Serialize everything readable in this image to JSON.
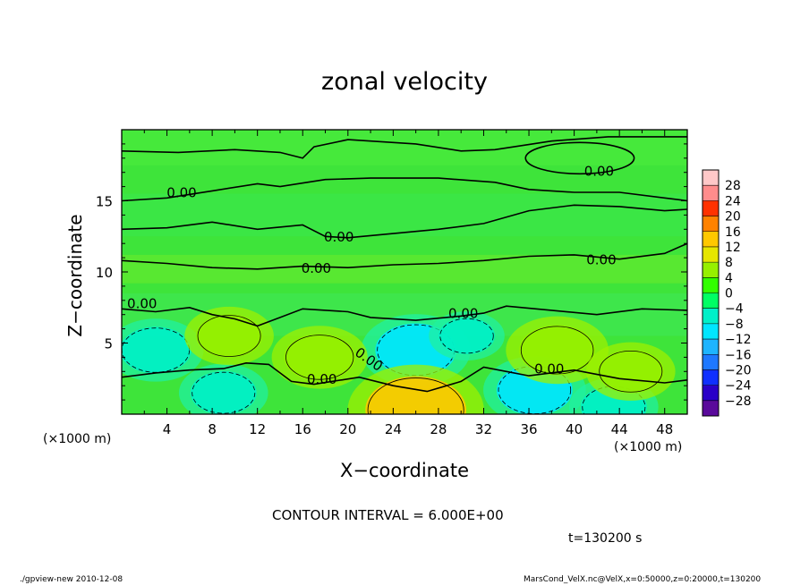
{
  "chart_data": {
    "type": "heatmap",
    "subtype": "filled contour",
    "title": "zonal velocity",
    "xlabel": "X−coordinate",
    "ylabel": "Z−coordinate",
    "x_unit": "(×1000 m)",
    "y_unit": "(×1000 m)",
    "xlim": [
      0,
      50
    ],
    "ylim": [
      0,
      20
    ],
    "x_ticks": [
      4,
      8,
      12,
      16,
      20,
      24,
      28,
      32,
      36,
      40,
      44,
      48
    ],
    "y_ticks": [
      5,
      10,
      15
    ],
    "colorbar_levels": [
      -28,
      -24,
      -20,
      -16,
      -12,
      -8,
      -4,
      0,
      4,
      8,
      12,
      16,
      20,
      24,
      28
    ],
    "colorbar_colors": [
      "#5a0a9b",
      "#2a00c8",
      "#1030ff",
      "#1e78ff",
      "#1eb4ff",
      "#00e6ff",
      "#00f0c8",
      "#00ff64",
      "#32ff00",
      "#96f000",
      "#e6e600",
      "#ffc800",
      "#ff8200",
      "#ff3200",
      "#ff8c8c",
      "#ffc8c8"
    ],
    "contour_interval_text": "CONTOUR INTERVAL = 6.000E+00",
    "contour_labels": [
      "0.00",
      "0.00",
      "0.00",
      "0.00",
      "0.00",
      "0.00",
      "0.00",
      "0.00",
      "0.00",
      "0.00",
      "0.00"
    ],
    "features": [
      {
        "kind": "negative",
        "x": 3,
        "z": 4.5,
        "value": -7
      },
      {
        "kind": "negative",
        "x": 26,
        "z": 4.5,
        "value": -9
      },
      {
        "kind": "negative",
        "x": 36.5,
        "z": 1.7,
        "value": -8
      },
      {
        "kind": "negative",
        "x": 9,
        "z": 1.5,
        "value": -6
      },
      {
        "kind": "negative",
        "x": 43.5,
        "z": 0.5,
        "value": -6
      },
      {
        "kind": "negative",
        "x": 30.5,
        "z": 5.5,
        "value": -4
      },
      {
        "kind": "positive",
        "x": 17.5,
        "z": 4.0,
        "value": 7
      },
      {
        "kind": "positive",
        "x": 38.5,
        "z": 4.5,
        "value": 8
      },
      {
        "kind": "positive",
        "x": 9.5,
        "z": 5.5,
        "value": 6
      },
      {
        "kind": "positive",
        "x": 26,
        "z": 0.3,
        "value": 13
      },
      {
        "kind": "positive",
        "x": 45,
        "z": 3.0,
        "value": 6
      }
    ]
  },
  "labels": {
    "title": "zonal velocity",
    "xlabel": "X−coordinate",
    "ylabel": "Z−coordinate",
    "xunit_left": "(×1000 m)",
    "xunit_right": "(×1000 m)",
    "contour_interval": "CONTOUR INTERVAL = 6.000E+00",
    "time": "t=130200 s",
    "footer_left": "./gpview-new  2010-12-08",
    "footer_right": "MarsCond_VelX.nc@VelX,x=0:50000,z=0:20000,t=130200"
  }
}
